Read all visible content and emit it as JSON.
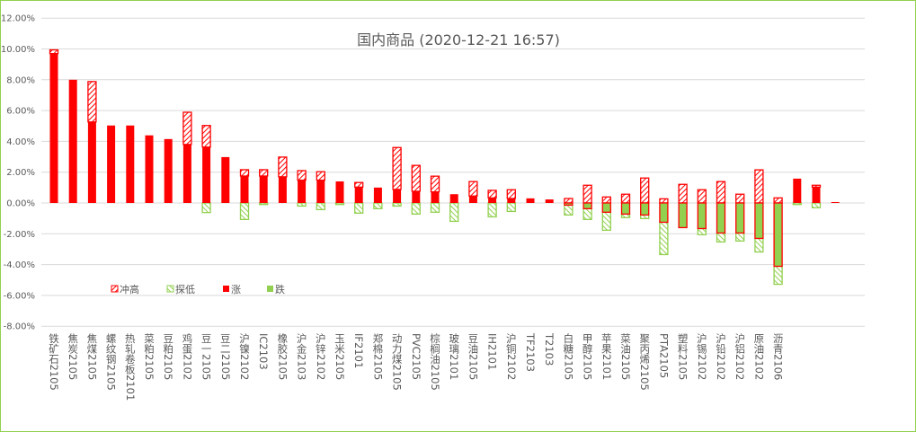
{
  "chart_data": {
    "type": "bar",
    "title": "国内商品 (2020-12-21 16:57)",
    "xlabel": "",
    "ylabel": "",
    "ylim": [
      -8,
      12
    ],
    "yticks": [
      12,
      10,
      8,
      6,
      4,
      2,
      0,
      -2,
      -4,
      -6,
      -8
    ],
    "ytick_labels": [
      "12.00%",
      "10.00%",
      "8.00%",
      "6.00%",
      "4.00%",
      "2.00%",
      "0.00%",
      "-2.00%",
      "-4.00%",
      "-6.00%",
      "-8.00%"
    ],
    "grid": true,
    "legend_position": "lower-left",
    "legend": [
      {
        "key": "high",
        "label": "冲高"
      },
      {
        "key": "low",
        "label": "探低"
      },
      {
        "key": "up",
        "label": "涨"
      },
      {
        "key": "down",
        "label": "跌"
      }
    ],
    "colors": {
      "up": "#ff0000",
      "down": "#92d050",
      "grid": "#d9d9d9",
      "text": "#595959"
    },
    "categories": [
      "铁矿石2105",
      "焦炭2105",
      "焦煤2105",
      "螺纹钢2105",
      "热轧卷板2101",
      "菜粕2105",
      "豆粕2105",
      "鸡蛋2102",
      "豆一2105",
      "豆二2105",
      "沪镍2102",
      "IC2103",
      "橡胶2105",
      "沪金2103",
      "沪锌2102",
      "玉米2105",
      "IF2101",
      "郑棉2105",
      "动力煤2105",
      "PVC2105",
      "棕榈油2105",
      "玻璃2101",
      "豆油2105",
      "IH2101",
      "沪铜2102",
      "TF2103",
      "T2103",
      "白糖2105",
      "甲醇2105",
      "苹果2101",
      "菜油2105",
      "聚丙烯2105",
      "PTA2105",
      "塑料2105",
      "沪锡2102",
      "沪铅2102",
      "沪铝2102",
      "原油2102",
      "沥青2106",
      "",
      "",
      ""
    ],
    "series": [
      {
        "name": "close",
        "values": [
          9.7,
          8.0,
          5.26,
          5.03,
          5.03,
          4.39,
          4.15,
          3.8,
          3.63,
          2.98,
          1.75,
          1.75,
          1.7,
          1.48,
          1.48,
          1.4,
          1.03,
          1.0,
          0.88,
          0.76,
          0.72,
          0.57,
          0.45,
          0.33,
          0.29,
          0.3,
          0.23,
          -0.14,
          -0.37,
          -0.6,
          -0.72,
          -0.78,
          -1.25,
          -1.6,
          -1.66,
          -1.95,
          -1.95,
          -2.3,
          -4.11,
          1.58,
          1.03,
          0.06
        ]
      },
      {
        "name": "high",
        "values": [
          9.94,
          8.0,
          7.88,
          5.03,
          5.03,
          4.39,
          4.15,
          5.89,
          5.03,
          2.98,
          2.16,
          2.16,
          2.98,
          2.1,
          2.03,
          1.4,
          1.33,
          1.0,
          3.6,
          2.44,
          1.74,
          0.57,
          1.39,
          0.82,
          0.86,
          0.3,
          0.23,
          0.29,
          1.15,
          0.39,
          0.57,
          1.62,
          0.27,
          1.21,
          0.86,
          1.39,
          0.57,
          2.15,
          0.33,
          1.58,
          1.15,
          0.06
        ]
      },
      {
        "name": "low",
        "values": [
          0,
          0,
          0,
          0,
          0,
          0,
          0,
          0,
          -0.62,
          0,
          -1.07,
          -0.1,
          0,
          -0.2,
          -0.43,
          -0.1,
          -0.66,
          -0.37,
          -0.2,
          -0.72,
          -0.6,
          -1.19,
          0,
          -0.9,
          -0.55,
          0,
          0,
          -0.78,
          -1.07,
          -1.77,
          -0.95,
          -1.01,
          -3.35,
          -1.6,
          -2.06,
          -2.53,
          -2.47,
          -3.18,
          -5.28,
          -0.1,
          -0.31,
          0
        ]
      }
    ]
  }
}
